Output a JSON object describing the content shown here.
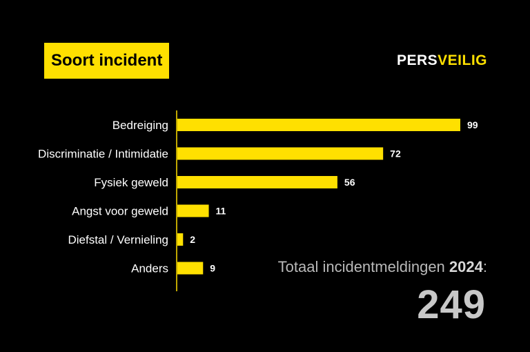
{
  "title": "Soort incident",
  "brand": {
    "part1": "PERS",
    "part2": "VEILIG"
  },
  "total": {
    "label": "Totaal incidentmeldingen",
    "year": "2024",
    "suffix": ":",
    "value": "249"
  },
  "colors": {
    "bar": "#ffe000",
    "background": "#000000",
    "text": "#ffffff"
  },
  "chart_data": {
    "type": "bar",
    "orientation": "horizontal",
    "categories": [
      "Bedreiging",
      "Discriminatie / Intimidatie",
      "Fysiek geweld",
      "Angst voor geweld",
      "Diefstal / Vernieling",
      "Anders"
    ],
    "values": [
      99,
      72,
      56,
      11,
      2,
      9
    ],
    "title": "Soort incident",
    "xlabel": "",
    "ylabel": "",
    "xlim": [
      0,
      99
    ],
    "grid": false,
    "legend": "none"
  }
}
